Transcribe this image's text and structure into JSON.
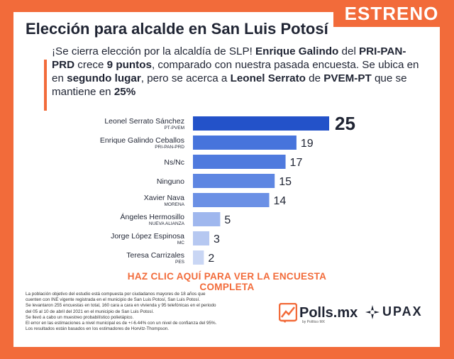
{
  "badge": "ESTRENO",
  "title": "Elección para alcalde en San Luis Potosí",
  "intro": [
    {
      "t": "¡Se cierra elección por la alcaldía de SLP! ",
      "b": false
    },
    {
      "t": "Enrique Galindo",
      "b": true
    },
    {
      "t": " del ",
      "b": false
    },
    {
      "t": "PRI-PAN-PRD",
      "b": true
    },
    {
      "t": " crece ",
      "b": false
    },
    {
      "t": "9 puntos",
      "b": true
    },
    {
      "t": ", comparado con nuestra pasada encuesta. Se ubica en en ",
      "b": false
    },
    {
      "t": "segundo lugar",
      "b": true
    },
    {
      "t": ", pero se acerca a ",
      "b": false
    },
    {
      "t": "Leonel Serrato",
      "b": true
    },
    {
      "t": " de ",
      "b": false
    },
    {
      "t": "PVEM-PT",
      "b": true
    },
    {
      "t": " que se mantiene en ",
      "b": false
    },
    {
      "t": "25%",
      "b": true
    }
  ],
  "cta": "HAZ CLIC AQUÍ PARA VER LA ENCUESTA COMPLETA",
  "footnote": [
    "La población objetivo del estudio está compuesta por ciudadanos mayores de 18 años que",
    "cuenten con INE vigente registrada en el municipio de San Luis Potosí, San Luis Potosí.",
    "Se levantaron 255 encuestas en total, 160 cara a cara en vivienda y 95 telefónicas en el periodo",
    "del 05 al 10 de abril del 2021 en el municipio de San Luis Potosí.",
    "Se llevó a cabo un muestreo probabilístico polietápico.",
    "El error en las estimaciones a nivel municipal es de +/-6.44% con un nivel de confianza del 95%.",
    "Los resultados están basados en los estimadores de Horvitz-Thompson."
  ],
  "logos": {
    "polls": "Polls.mx",
    "polls_sub": "by Político MX",
    "upax": "UPAX"
  },
  "colors": {
    "accent": "#f26b3a",
    "text": "#1f2433",
    "bar_top": "#2352c9",
    "bar_light": "#c9d6f4"
  },
  "chart_data": {
    "type": "bar",
    "orientation": "horizontal",
    "categories": [
      "Leonel Serrato Sánchez",
      "Enrique Galindo Ceballos",
      "Ns/Nc",
      "Ninguno",
      "Xavier Nava",
      "Ángeles Hermosillo",
      "Jorge López Espinosa",
      "Teresa Carrizales"
    ],
    "parties": [
      "PT-PVEM",
      "PRI-PAN-PRD",
      "",
      "",
      "MORENA",
      "NUEVA ALIANZA",
      "MC",
      "PES"
    ],
    "values": [
      25,
      19,
      17,
      15,
      14,
      5,
      3,
      2
    ],
    "bar_colors": [
      "#2352c9",
      "#4774dc",
      "#4f7ade",
      "#5e86e2",
      "#6b90e5",
      "#9fb7ee",
      "#b6c8f1",
      "#c9d6f4"
    ],
    "xlim": [
      0,
      25
    ]
  }
}
